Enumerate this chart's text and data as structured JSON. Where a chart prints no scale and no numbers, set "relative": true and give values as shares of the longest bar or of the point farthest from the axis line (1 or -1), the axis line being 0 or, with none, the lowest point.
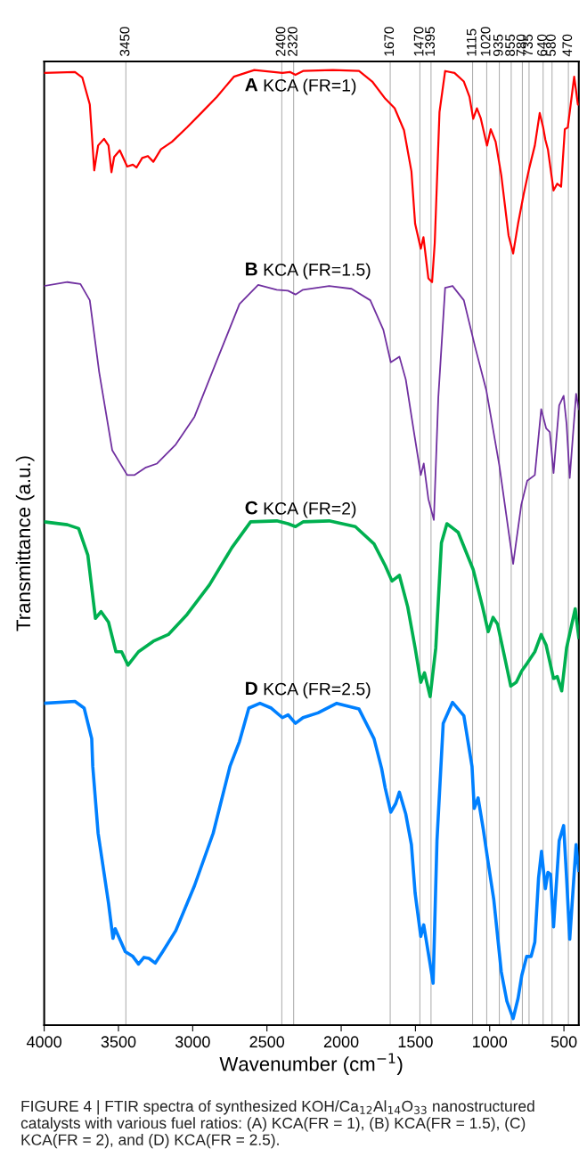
{
  "chart_data": {
    "type": "line",
    "relative": true,
    "xlabel": "Wavenumber (cm$^{−1}$)",
    "ylabel": "Transmittance (a.u.)",
    "xlim": [
      4000,
      400
    ],
    "xticks": [
      4000,
      3500,
      3000,
      2500,
      2000,
      1500,
      1000,
      500
    ],
    "grid": false,
    "legend": false,
    "marker": "none",
    "line_style": "solid",
    "series": [
      {
        "name": "A KCA (FR=1)",
        "color": "#ff0000",
        "x": [
          4000,
          3793,
          3743,
          3693,
          3663,
          3637,
          3597,
          3567,
          3547,
          3529,
          3491,
          3441,
          3403,
          3378,
          3340,
          3302,
          3265,
          3214,
          3139,
          3038,
          2937,
          2837,
          2723,
          2585,
          2396,
          2345,
          2308,
          2257,
          2056,
          1880,
          1791,
          1703,
          1640,
          1577,
          1527,
          1502,
          1464,
          1446,
          1413,
          1388,
          1370,
          1338,
          1300,
          1237,
          1174,
          1136,
          1111,
          1086,
          1061,
          1018,
          993,
          960,
          922,
          873,
          842,
          809,
          771,
          734,
          696,
          663,
          640,
          625,
          608,
          570,
          545,
          519,
          494,
          474,
          431,
          406,
          400
        ],
        "values": [
          0.997,
          0.998,
          0.992,
          0.964,
          0.895,
          0.921,
          0.928,
          0.921,
          0.893,
          0.909,
          0.916,
          0.899,
          0.901,
          0.898,
          0.908,
          0.91,
          0.904,
          0.917,
          0.925,
          0.94,
          0.956,
          0.972,
          0.993,
          1.0,
          0.997,
          0.998,
          0.995,
          0.999,
          1.0,
          0.999,
          0.988,
          0.97,
          0.96,
          0.937,
          0.894,
          0.839,
          0.813,
          0.825,
          0.782,
          0.778,
          0.819,
          0.956,
          0.999,
          0.997,
          0.988,
          0.972,
          0.949,
          0.96,
          0.95,
          0.921,
          0.938,
          0.925,
          0.89,
          0.827,
          0.808,
          0.839,
          0.87,
          0.897,
          0.921,
          0.955,
          0.94,
          0.927,
          0.917,
          0.874,
          0.881,
          0.878,
          0.938,
          0.94,
          0.993,
          0.964,
          0.964
        ]
      },
      {
        "name": "B KCA (FR=1.5)",
        "color": "#7030a0",
        "x": [
          4000,
          3844,
          3756,
          3693,
          3630,
          3542,
          3441,
          3391,
          3315,
          3240,
          3114,
          2988,
          2837,
          2685,
          2559,
          2434,
          2358,
          2308,
          2257,
          2081,
          1930,
          1804,
          1716,
          1666,
          1608,
          1565,
          1514,
          1464,
          1444,
          1413,
          1376,
          1346,
          1300,
          1250,
          1174,
          1098,
          1023,
          935,
          842,
          787,
          747,
          696,
          653,
          620,
          595,
          570,
          532,
          502,
          482,
          461,
          418,
          400
        ],
        "values": [
          0.774,
          0.778,
          0.776,
          0.759,
          0.684,
          0.602,
          0.576,
          0.576,
          0.584,
          0.588,
          0.608,
          0.637,
          0.696,
          0.755,
          0.775,
          0.77,
          0.769,
          0.765,
          0.77,
          0.774,
          0.771,
          0.759,
          0.728,
          0.694,
          0.7,
          0.676,
          0.625,
          0.576,
          0.588,
          0.551,
          0.529,
          0.657,
          0.772,
          0.774,
          0.759,
          0.71,
          0.665,
          0.586,
          0.483,
          0.545,
          0.57,
          0.576,
          0.645,
          0.625,
          0.621,
          0.578,
          0.649,
          0.659,
          0.629,
          0.573,
          0.661,
          0.645
        ]
      },
      {
        "name": "C KCA (FR=2)",
        "color": "#00b050",
        "x": [
          4000,
          3844,
          3768,
          3706,
          3655,
          3617,
          3567,
          3517,
          3479,
          3436,
          3365,
          3265,
          3164,
          3038,
          2887,
          2736,
          2610,
          2434,
          2358,
          2308,
          2257,
          2081,
          1905,
          1779,
          1703,
          1658,
          1608,
          1552,
          1502,
          1464,
          1439,
          1401,
          1363,
          1325,
          1288,
          1212,
          1111,
          1048,
          1010,
          977,
          947,
          896,
          858,
          821,
          784,
          747,
          696,
          653,
          620,
          570,
          545,
          515,
          482,
          424,
          400
        ],
        "values": [
          0.527,
          0.524,
          0.52,
          0.492,
          0.426,
          0.433,
          0.422,
          0.391,
          0.391,
          0.377,
          0.391,
          0.402,
          0.409,
          0.43,
          0.461,
          0.5,
          0.527,
          0.528,
          0.525,
          0.522,
          0.527,
          0.528,
          0.522,
          0.504,
          0.481,
          0.465,
          0.471,
          0.438,
          0.395,
          0.359,
          0.369,
          0.344,
          0.395,
          0.505,
          0.525,
          0.516,
          0.477,
          0.438,
          0.412,
          0.427,
          0.42,
          0.383,
          0.355,
          0.359,
          0.371,
          0.379,
          0.391,
          0.409,
          0.398,
          0.363,
          0.365,
          0.35,
          0.395,
          0.436,
          0.406
        ]
      },
      {
        "name": "D KCA (FR=2.5)",
        "color": "#0080ff",
        "x": [
          4000,
          3793,
          3731,
          3680,
          3673,
          3637,
          3567,
          3537,
          3522,
          3454,
          3403,
          3365,
          3328,
          3295,
          3252,
          3202,
          3114,
          2988,
          2862,
          2749,
          2685,
          2622,
          2547,
          2471,
          2396,
          2358,
          2308,
          2257,
          2156,
          2030,
          1880,
          1779,
          1728,
          1703,
          1666,
          1633,
          1608,
          1565,
          1527,
          1502,
          1464,
          1444,
          1401,
          1381,
          1355,
          1313,
          1250,
          1174,
          1119,
          1104,
          1078,
          1043,
          1010,
          972,
          922,
          884,
          842,
          809,
          784,
          751,
          721,
          696,
          671,
          651,
          625,
          608,
          590,
          570,
          532,
          502,
          482,
          461,
          418,
          400
        ],
        "values": [
          0.337,
          0.339,
          0.332,
          0.3,
          0.271,
          0.201,
          0.128,
          0.091,
          0.101,
          0.077,
          0.072,
          0.064,
          0.071,
          0.07,
          0.065,
          0.077,
          0.099,
          0.146,
          0.201,
          0.271,
          0.297,
          0.332,
          0.337,
          0.332,
          0.322,
          0.325,
          0.316,
          0.322,
          0.327,
          0.337,
          0.331,
          0.3,
          0.269,
          0.248,
          0.223,
          0.232,
          0.244,
          0.221,
          0.189,
          0.138,
          0.093,
          0.105,
          0.064,
          0.044,
          0.193,
          0.316,
          0.338,
          0.324,
          0.271,
          0.227,
          0.238,
          0.205,
          0.17,
          0.131,
          0.056,
          0.025,
          0.007,
          0.028,
          0.052,
          0.072,
          0.072,
          0.087,
          0.154,
          0.182,
          0.143,
          0.16,
          0.158,
          0.103,
          0.193,
          0.209,
          0.154,
          0.09,
          0.189,
          0.162
        ]
      }
    ],
    "ref_lines": [
      {
        "axis": "x",
        "value": 3450,
        "label": "3450"
      },
      {
        "axis": "x",
        "value": 2400,
        "label": "2400"
      },
      {
        "axis": "x",
        "value": 2320,
        "label": "2320"
      },
      {
        "axis": "x",
        "value": 1670,
        "label": "1670"
      },
      {
        "axis": "x",
        "value": 1470,
        "label": "1470"
      },
      {
        "axis": "x",
        "value": 1395,
        "label": "1395"
      },
      {
        "axis": "x",
        "value": 1115,
        "label": "1115"
      },
      {
        "axis": "x",
        "value": 1020,
        "label": "1020"
      },
      {
        "axis": "x",
        "value": 935,
        "label": "935"
      },
      {
        "axis": "x",
        "value": 855,
        "label": "855"
      },
      {
        "axis": "x",
        "value": 780,
        "label": "780"
      },
      {
        "axis": "x",
        "value": 735,
        "label": "735"
      },
      {
        "axis": "x",
        "value": 640,
        "label": "640"
      },
      {
        "axis": "x",
        "value": 580,
        "label": "580"
      },
      {
        "axis": "x",
        "value": 470,
        "label": "470"
      }
    ],
    "annotations": [
      "FIGURE 4 | FTIR spectra of synthesized KOH/Ca$_{12}$Al$_{14}$O$_{33}$ nanostructured catalysts with various fuel ratios: (A) KCA(FR = 1), (B) KCA(FR = 1.5), (C) KCA(FR = 2), and (D) KCA(FR = 2.5)."
    ]
  }
}
